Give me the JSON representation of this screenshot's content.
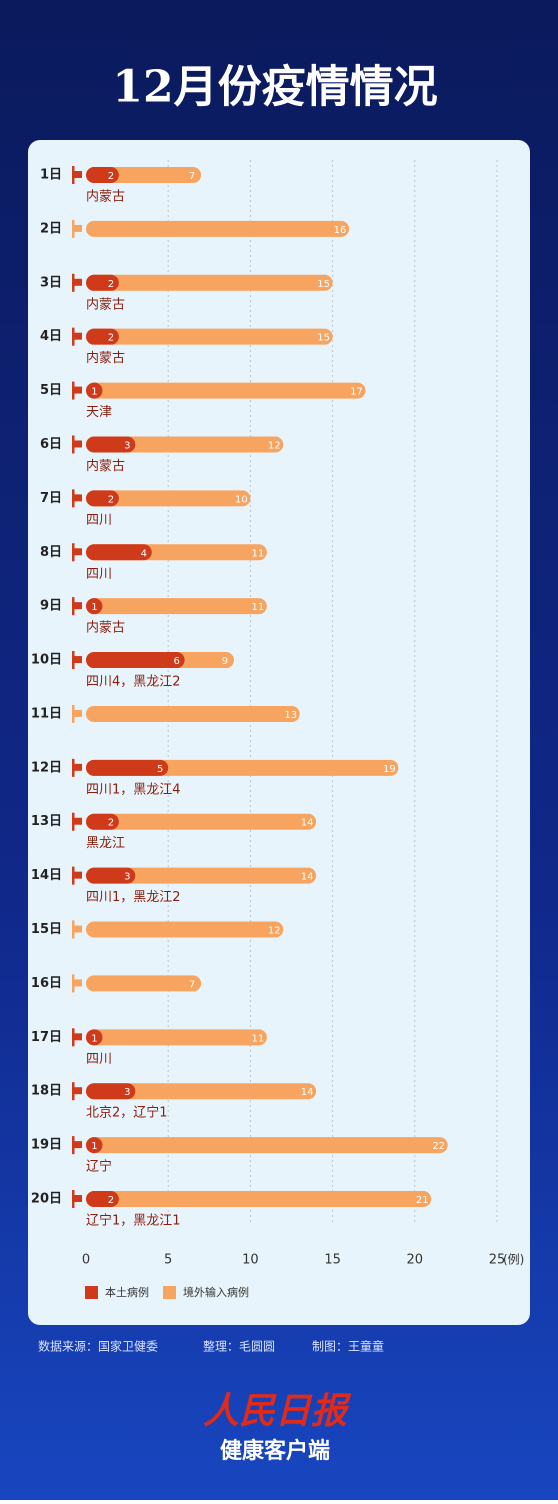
{
  "chart_data": {
    "type": "bar",
    "title": "12月份疫情情况",
    "categories": [
      "1日",
      "2日",
      "3日",
      "4日",
      "5日",
      "6日",
      "7日",
      "8日",
      "9日",
      "10日",
      "11日",
      "12日",
      "13日",
      "14日",
      "15日",
      "16日",
      "17日",
      "18日",
      "19日",
      "20日"
    ],
    "series": [
      {
        "name": "本土病例",
        "color": "#cf3a1b",
        "values": [
          2,
          null,
          2,
          2,
          1,
          3,
          2,
          4,
          1,
          6,
          null,
          5,
          2,
          3,
          null,
          null,
          1,
          3,
          1,
          2
        ]
      },
      {
        "name": "境外输入病例",
        "color": "#f7a461",
        "values": [
          7,
          16,
          15,
          15,
          17,
          12,
          10,
          11,
          11,
          9,
          13,
          19,
          14,
          14,
          12,
          7,
          11,
          14,
          22,
          21
        ]
      }
    ],
    "local_regions": [
      "内蒙古",
      null,
      "内蒙古",
      "内蒙古",
      "天津",
      "内蒙古",
      "四川",
      "四川",
      "内蒙古",
      "四川4，黑龙江2",
      null,
      "四川1，黑龙江4",
      "黑龙江",
      "四川1，黑龙江2",
      null,
      null,
      "四川",
      "北京2，辽宁1",
      "辽宁",
      "辽宁1，黑龙江1"
    ],
    "xlim": [
      0,
      25
    ],
    "xticks": [
      0,
      5,
      10,
      15,
      20,
      25
    ],
    "x_unit": "(例)",
    "grid": true
  },
  "footer": {
    "source": "数据来源：国家卫健委",
    "editor": "整理：毛圆圆",
    "designer": "制图：王童童"
  },
  "brand": {
    "name": "人民日报",
    "sub": "健康客户端"
  }
}
